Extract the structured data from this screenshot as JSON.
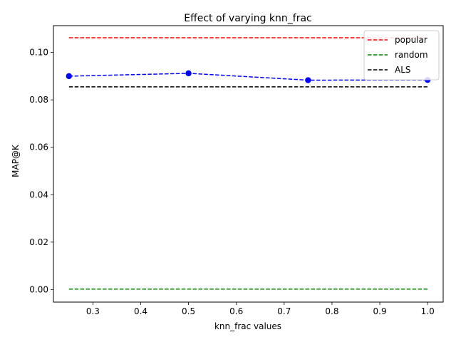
{
  "chart_data": {
    "type": "line",
    "title": "Effect of varying knn_frac",
    "xlabel": "knn_frac values",
    "ylabel": "MAP@K",
    "xlim": [
      0.2175,
      1.0325
    ],
    "ylim": [
      -0.0053,
      0.1113
    ],
    "xticks": [
      0.3,
      0.4,
      0.5,
      0.6,
      0.7,
      0.8,
      0.9,
      1.0
    ],
    "xtick_labels": [
      "0.3",
      "0.4",
      "0.5",
      "0.6",
      "0.7",
      "0.8",
      "0.9",
      "1.0"
    ],
    "yticks": [
      0.0,
      0.02,
      0.04,
      0.06,
      0.08,
      0.1
    ],
    "ytick_labels": [
      "0.00",
      "0.02",
      "0.04",
      "0.06",
      "0.08",
      "0.10"
    ],
    "grid": false,
    "legend_position": "top-right",
    "series": [
      {
        "x": [
          0.25,
          0.5,
          0.75,
          1.0
        ],
        "values": [
          0.09,
          0.0912,
          0.0883,
          0.0884
        ],
        "color": "#0000ff",
        "style": "dashed",
        "markers": true
      },
      {
        "name": "popular",
        "x": [
          0.25,
          1.0
        ],
        "values": [
          0.1062,
          0.1062
        ],
        "color": "#ff0000",
        "style": "dashed",
        "markers": false
      },
      {
        "name": "random",
        "x": [
          0.25,
          1.0
        ],
        "values": [
          0.0002,
          0.0002
        ],
        "color": "#008000",
        "style": "dashed",
        "markers": false
      },
      {
        "name": "ALS",
        "x": [
          0.25,
          1.0
        ],
        "values": [
          0.0855,
          0.0855
        ],
        "color": "#000000",
        "style": "dashed",
        "markers": false
      }
    ]
  }
}
